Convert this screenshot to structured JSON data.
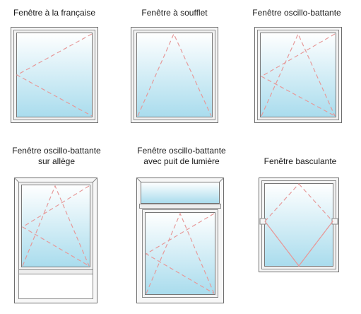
{
  "labels": {
    "francaise": "Fenêtre à la française",
    "soufflet": "Fenêtre à soufflet",
    "oscillo": "Fenêtre oscillo-battante",
    "allege_l1": "Fenêtre oscillo-battante",
    "allege_l2": "sur allège",
    "puits_l1": "Fenêtre oscillo-battante",
    "puits_l2": "avec puit de lumière",
    "basculante": "Fenêtre basculante"
  },
  "colors": {
    "frame_light": "#f5f5f5",
    "frame_dark": "#777777",
    "glass_top": "#ffffff",
    "glass_bottom": "#a9dced",
    "dash": "#e69a9a"
  }
}
